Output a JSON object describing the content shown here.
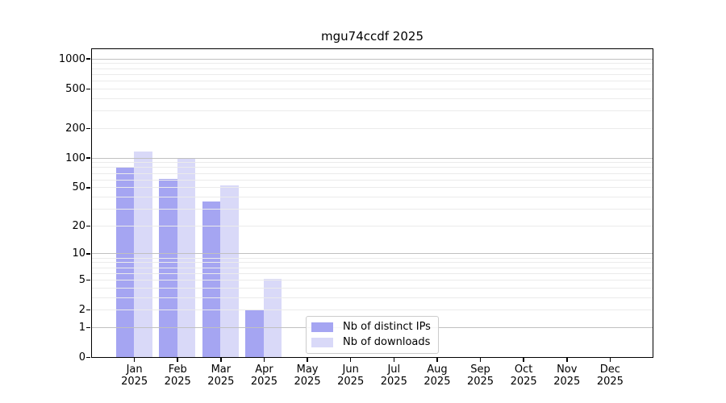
{
  "chart_data": {
    "type": "bar",
    "title": "mgu74ccdf 2025",
    "x_categories": [
      {
        "month": "Jan",
        "year": "2025"
      },
      {
        "month": "Feb",
        "year": "2025"
      },
      {
        "month": "Mar",
        "year": "2025"
      },
      {
        "month": "Apr",
        "year": "2025"
      },
      {
        "month": "May",
        "year": "2025"
      },
      {
        "month": "Jun",
        "year": "2025"
      },
      {
        "month": "Jul",
        "year": "2025"
      },
      {
        "month": "Aug",
        "year": "2025"
      },
      {
        "month": "Sep",
        "year": "2025"
      },
      {
        "month": "Oct",
        "year": "2025"
      },
      {
        "month": "Nov",
        "year": "2025"
      },
      {
        "month": "Dec",
        "year": "2025"
      }
    ],
    "series": [
      {
        "id": "distinct-ips",
        "name": "Nb of distinct IPs",
        "color": "#a5a5f2",
        "values": [
          80,
          60,
          35,
          2,
          0,
          0,
          0,
          0,
          0,
          0,
          0,
          0
        ]
      },
      {
        "id": "downloads",
        "name": "Nb of downloads",
        "color": "#d9d9f8",
        "values": [
          114,
          99,
          52,
          5,
          0,
          0,
          0,
          0,
          0,
          0,
          0,
          0
        ]
      }
    ],
    "y_axis": {
      "scale": "log1p",
      "tick_labels": [
        0,
        1,
        2,
        5,
        10,
        20,
        50,
        100,
        200,
        500,
        1000
      ],
      "gridlines_major": [
        1,
        10,
        100,
        1000
      ],
      "gridlines_minor": [
        2,
        3,
        4,
        5,
        6,
        7,
        8,
        9,
        20,
        30,
        40,
        50,
        60,
        70,
        80,
        90,
        200,
        300,
        400,
        500,
        600,
        700,
        800,
        900
      ],
      "ylim": [
        0,
        1300
      ]
    },
    "legend_position": "bottom-center",
    "grid": true,
    "colors": {
      "axis": "#000000",
      "gridline_major": "#c0c0c0",
      "gridline_minor": "#ebebeb",
      "background": "#ffffff"
    }
  }
}
